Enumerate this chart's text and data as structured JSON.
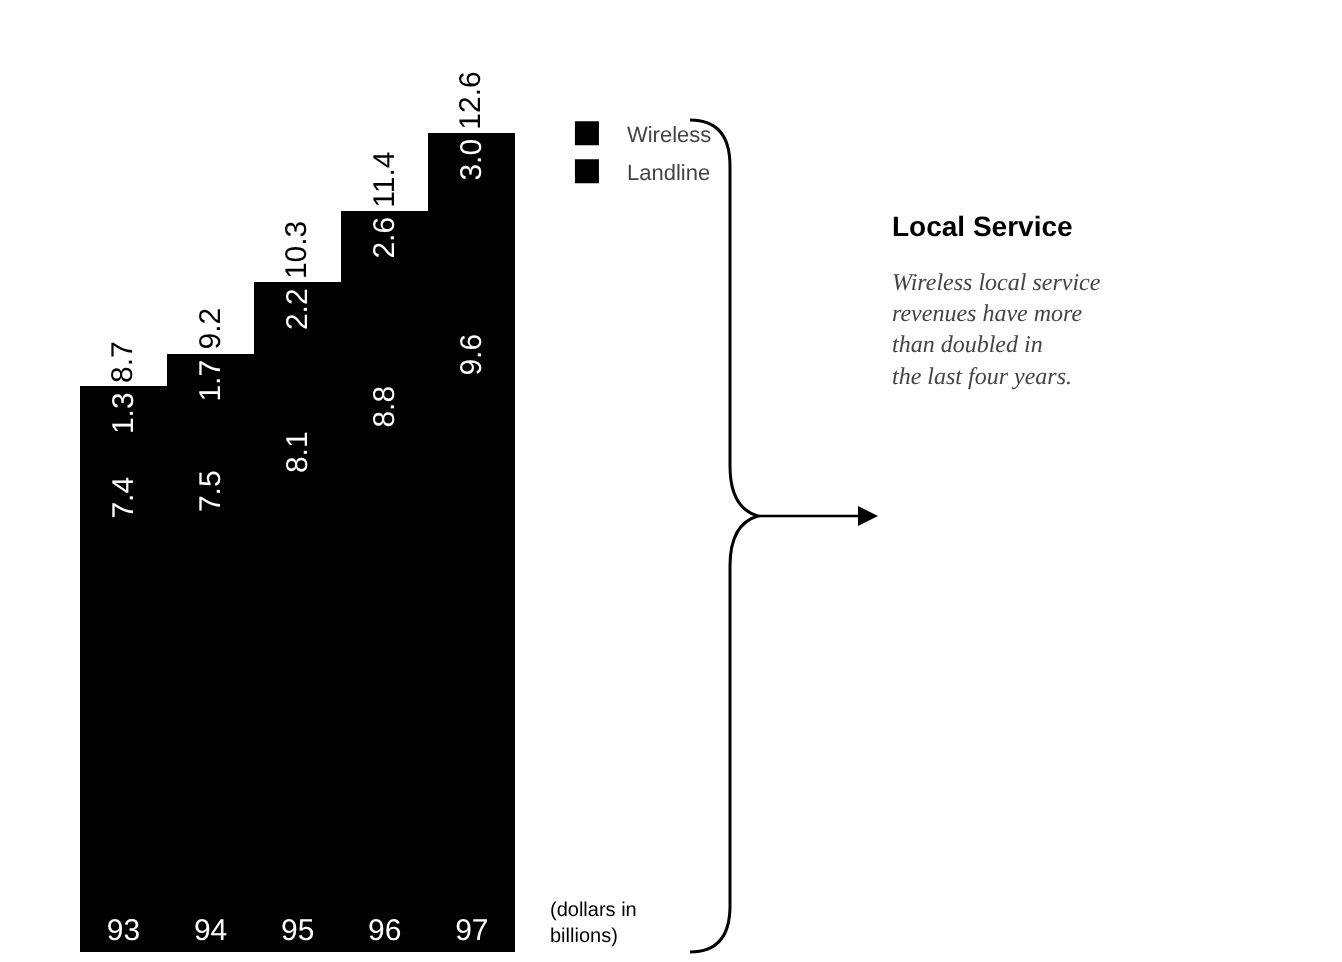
{
  "chart_data": {
    "type": "bar",
    "stacked": true,
    "categories": [
      "93",
      "94",
      "95",
      "96",
      "97"
    ],
    "series": [
      {
        "name": "Landline",
        "color": "#000000",
        "values": [
          7.4,
          7.5,
          8.1,
          8.8,
          9.6
        ],
        "value_labels": [
          "7.4",
          "7.5",
          "8.1",
          "8.8",
          "9.6"
        ]
      },
      {
        "name": "Wireless",
        "color": "#000000",
        "values": [
          1.3,
          1.7,
          2.2,
          2.6,
          3.0
        ],
        "value_labels": [
          "1.3",
          "1.7",
          "2.2",
          "2.6",
          "3.0"
        ]
      }
    ],
    "totals": [
      "8.7",
      "9.2",
      "10.3",
      "11.4",
      "12.6"
    ],
    "legend": "right",
    "annotations": [
      "(dollars in billions)",
      "Local Service",
      "Wireless local service revenues have more than doubled in the last four years."
    ]
  }
}
